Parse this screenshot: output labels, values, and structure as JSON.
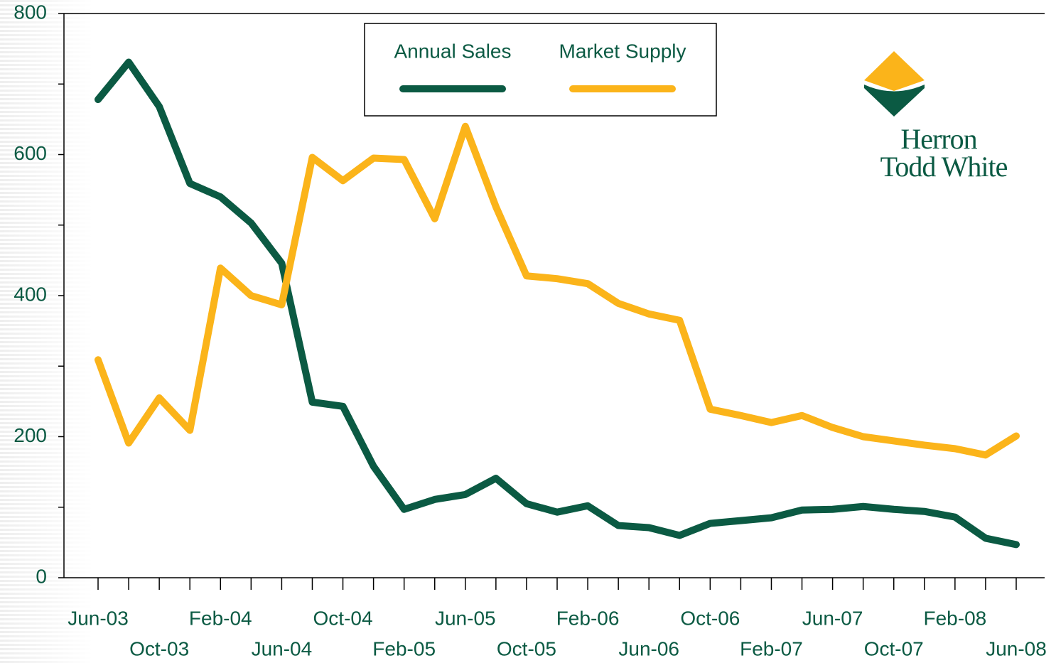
{
  "chart_data": {
    "type": "line",
    "categories": [
      "Jun-03",
      null,
      "Oct-03",
      null,
      "Feb-04",
      null,
      "Jun-04",
      null,
      "Oct-04",
      null,
      "Feb-05",
      null,
      "Jun-05",
      null,
      "Oct-05",
      null,
      "Feb-06",
      null,
      "Jun-06",
      null,
      "Oct-06",
      null,
      "Feb-07",
      null,
      "Jun-07",
      null,
      "Oct-07",
      null,
      "Feb-08",
      null,
      "Jun-08"
    ],
    "series": [
      {
        "name": "Annual Sales",
        "color": "#0b5a43",
        "values": [
          678,
          731,
          668,
          559,
          540,
          503,
          446,
          249,
          243,
          158,
          97,
          111,
          118,
          141,
          105,
          93,
          102,
          74,
          71,
          60,
          77,
          81,
          85,
          96,
          97,
          101,
          97,
          94,
          86,
          56,
          47
        ]
      },
      {
        "name": "Market Supply",
        "color": "#fbb41a",
        "values": [
          309,
          191,
          255,
          209,
          439,
          400,
          387,
          596,
          563,
          595,
          593,
          509,
          640,
          526,
          428,
          424,
          417,
          389,
          374,
          365,
          239,
          230,
          220,
          230,
          213,
          200,
          194,
          188,
          183,
          174,
          201
        ]
      }
    ],
    "ylim": [
      0,
      800
    ],
    "yticks": [
      0,
      200,
      400,
      600,
      800
    ],
    "yticks_minor": [
      100,
      300,
      500,
      700
    ],
    "legend": "top",
    "logo_text": [
      "Herron",
      "Todd White"
    ]
  }
}
